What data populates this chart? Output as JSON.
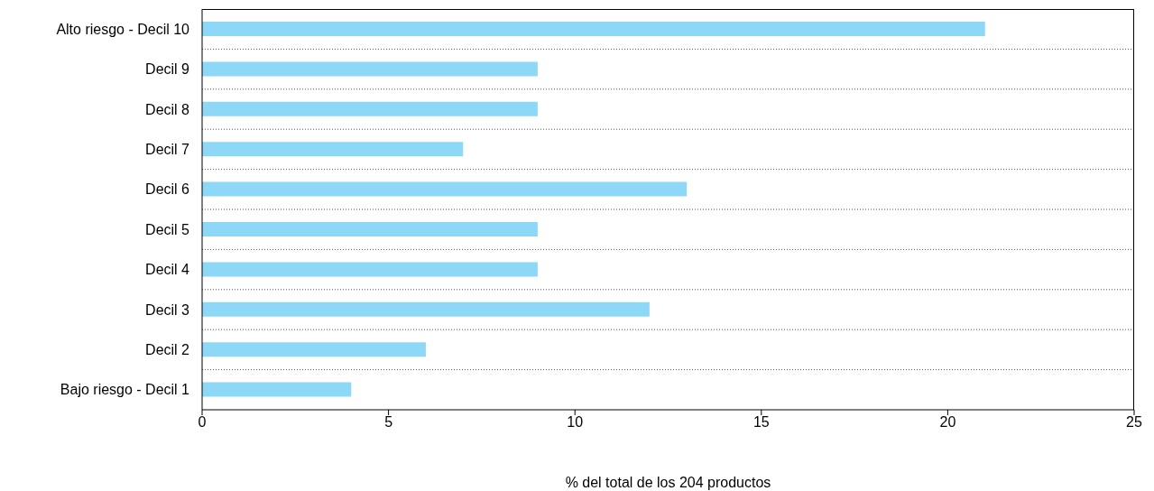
{
  "chart_data": {
    "type": "bar",
    "orientation": "horizontal",
    "xlabel": "% del total de los 204 productos",
    "categories": [
      "Alto riesgo - Decil 10",
      "Decil 9",
      "Decil 8",
      "Decil 7",
      "Decil 6",
      "Decil 5",
      "Decil 4",
      "Decil 3",
      "Decil 2",
      "Bajo riesgo - Decil 1"
    ],
    "values": [
      21,
      9,
      9,
      7,
      13,
      9,
      9,
      12,
      6,
      4
    ],
    "color": "#8dd7f7",
    "xlim": [
      0,
      25
    ],
    "xticks": [
      0,
      5,
      10,
      15,
      20,
      25
    ],
    "grid": "y"
  }
}
